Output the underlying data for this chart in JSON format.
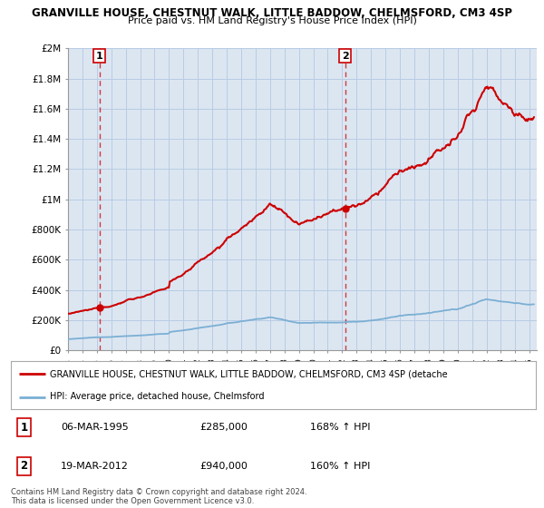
{
  "title1": "GRANVILLE HOUSE, CHESTNUT WALK, LITTLE BADDOW, CHELMSFORD, CM3 4SP",
  "title2": "Price paid vs. HM Land Registry's House Price Index (HPI)",
  "legend_label1": "GRANVILLE HOUSE, CHESTNUT WALK, LITTLE BADDOW, CHELMSFORD, CM3 4SP (detache",
  "legend_label2": "HPI: Average price, detached house, Chelmsford",
  "sale1_date": "06-MAR-1995",
  "sale1_price": "£285,000",
  "sale1_hpi": "168% ↑ HPI",
  "sale2_date": "19-MAR-2012",
  "sale2_price": "£940,000",
  "sale2_hpi": "160% ↑ HPI",
  "footnote": "Contains HM Land Registry data © Crown copyright and database right 2024.\nThis data is licensed under the Open Government Licence v3.0.",
  "ylim": [
    0,
    2000000
  ],
  "yticks": [
    0,
    200000,
    400000,
    600000,
    800000,
    1000000,
    1200000,
    1400000,
    1600000,
    1800000,
    2000000
  ],
  "ytick_labels": [
    "£0",
    "£200K",
    "£400K",
    "£600K",
    "£800K",
    "£1M",
    "£1.2M",
    "£1.4M",
    "£1.6M",
    "£1.8M",
    "£2M"
  ],
  "sale1_x": 1995.18,
  "sale1_y": 285000,
  "sale2_x": 2012.21,
  "sale2_y": 940000,
  "hpi_color": "#7bafd4",
  "price_color": "#cc0000",
  "bg_color": "#dce6f1",
  "grid_color": "#b8cce4",
  "vline_color": "#cc0000",
  "xmin": 1993.0,
  "xmax": 2025.5
}
